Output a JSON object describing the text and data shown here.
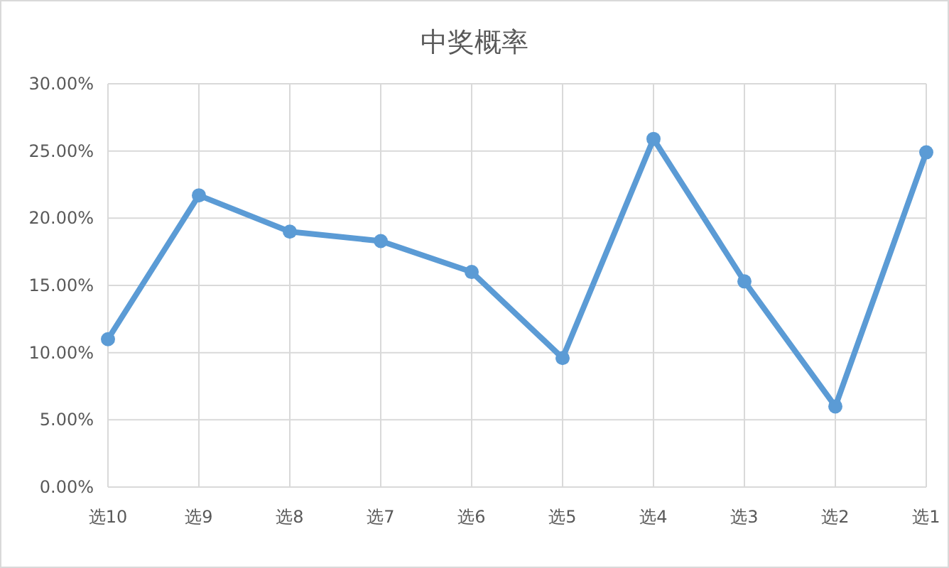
{
  "chart_data": {
    "type": "line",
    "title": "中奖概率",
    "categories": [
      "选10",
      "选9",
      "选8",
      "选7",
      "选6",
      "选5",
      "选4",
      "选3",
      "选2",
      "选1"
    ],
    "series": [
      {
        "color": "#5b9bd5",
        "values": [
          11.0,
          21.7,
          19.0,
          18.3,
          16.0,
          9.6,
          25.9,
          15.3,
          6.0,
          24.9
        ]
      }
    ],
    "ylim": [
      0,
      30
    ],
    "yticks": [
      {
        "value": 0,
        "label": "0.00%"
      },
      {
        "value": 5,
        "label": "5.00%"
      },
      {
        "value": 10,
        "label": "10.00%"
      },
      {
        "value": 15,
        "label": "15.00%"
      },
      {
        "value": 20,
        "label": "20.00%"
      },
      {
        "value": 25,
        "label": "25.00%"
      },
      {
        "value": 30,
        "label": "30.00%"
      }
    ],
    "grid": true,
    "marker": "circle",
    "line_style": "solid"
  }
}
